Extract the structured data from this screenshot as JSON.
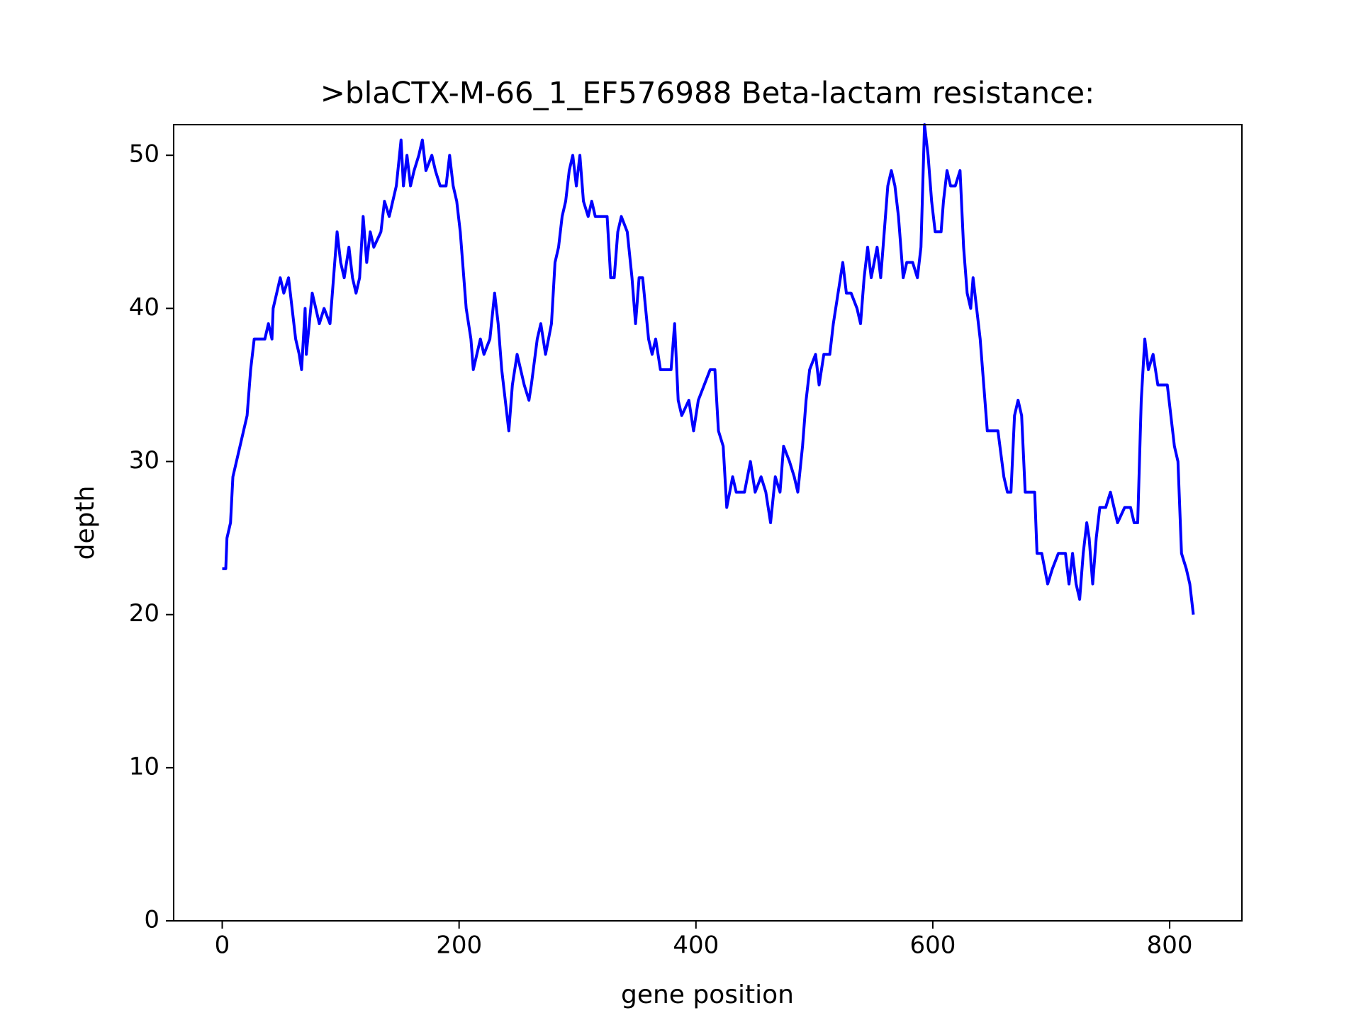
{
  "chart_data": {
    "type": "line",
    "title": ">blaCTX-M-66_1_EF576988 Beta-lactam resistance:",
    "xlabel": "gene position",
    "ylabel": "depth",
    "color": "#0000ff",
    "xlim": [
      -41,
      861
    ],
    "ylim": [
      0,
      52
    ],
    "xticks": [
      0,
      200,
      400,
      600,
      800
    ],
    "yticks": [
      0,
      10,
      20,
      30,
      40,
      50
    ],
    "x": [
      0,
      3,
      4,
      7,
      9,
      12,
      15,
      18,
      21,
      24,
      27,
      36,
      39,
      42,
      43,
      46,
      49,
      52,
      56,
      59,
      62,
      65,
      67,
      70,
      71,
      76,
      79,
      82,
      86,
      91,
      94,
      97,
      100,
      103,
      107,
      110,
      113,
      116,
      119,
      122,
      125,
      128,
      134,
      137,
      141,
      144,
      147,
      151,
      153,
      156,
      159,
      162,
      166,
      169,
      172,
      177,
      180,
      184,
      189,
      192,
      195,
      198,
      201,
      203,
      206,
      210,
      212,
      215,
      218,
      221,
      226,
      230,
      233,
      236,
      239,
      242,
      245,
      249,
      252,
      255,
      259,
      261,
      266,
      269,
      273,
      278,
      281,
      284,
      287,
      290,
      293,
      296,
      299,
      302,
      305,
      309,
      312,
      315,
      319,
      325,
      328,
      331,
      334,
      337,
      342,
      346,
      349,
      352,
      355,
      360,
      363,
      366,
      370,
      373,
      379,
      382,
      385,
      388,
      394,
      398,
      402,
      407,
      412,
      416,
      419,
      423,
      426,
      431,
      434,
      441,
      446,
      450,
      455,
      459,
      463,
      467,
      471,
      474,
      479,
      483,
      486,
      490,
      493,
      496,
      501,
      504,
      508,
      513,
      516,
      520,
      524,
      527,
      531,
      536,
      539,
      542,
      545,
      548,
      553,
      556,
      559,
      562,
      565,
      568,
      571,
      575,
      578,
      583,
      587,
      590,
      593,
      596,
      599,
      602,
      607,
      609,
      612,
      615,
      619,
      623,
      626,
      629,
      632,
      634,
      637,
      640,
      643,
      646,
      651,
      655,
      660,
      663,
      666,
      669,
      672,
      675,
      678,
      682,
      686,
      688,
      692,
      697,
      701,
      706,
      712,
      715,
      718,
      721,
      724,
      727,
      730,
      732,
      735,
      738,
      741,
      746,
      750,
      753,
      756,
      762,
      767,
      770,
      773,
      776,
      779,
      782,
      786,
      790,
      798,
      801,
      804,
      807,
      810,
      814,
      817,
      820
    ],
    "values": [
      23,
      23,
      25,
      26,
      29,
      30,
      31,
      32,
      33,
      36,
      38,
      38,
      39,
      38,
      40,
      41,
      42,
      41,
      42,
      40,
      38,
      37,
      36,
      40,
      37,
      41,
      40,
      39,
      40,
      39,
      42,
      45,
      43,
      42,
      44,
      42,
      41,
      42,
      46,
      43,
      45,
      44,
      45,
      47,
      46,
      47,
      48,
      51,
      48,
      50,
      48,
      49,
      50,
      51,
      49,
      50,
      49,
      48,
      48,
      50,
      48,
      47,
      45,
      43,
      40,
      38,
      36,
      37,
      38,
      37,
      38,
      41,
      39,
      36,
      34,
      32,
      35,
      37,
      36,
      35,
      34,
      35,
      38,
      39,
      37,
      39,
      43,
      44,
      46,
      47,
      49,
      50,
      48,
      50,
      47,
      46,
      47,
      46,
      46,
      46,
      42,
      42,
      45,
      46,
      45,
      42,
      39,
      42,
      42,
      38,
      37,
      38,
      36,
      36,
      36,
      39,
      34,
      33,
      34,
      32,
      34,
      35,
      36,
      36,
      32,
      31,
      27,
      29,
      28,
      28,
      30,
      28,
      29,
      28,
      26,
      29,
      28,
      31,
      30,
      29,
      28,
      31,
      34,
      36,
      37,
      35,
      37,
      37,
      39,
      41,
      43,
      41,
      41,
      40,
      39,
      42,
      44,
      42,
      44,
      42,
      45,
      48,
      49,
      48,
      46,
      42,
      43,
      43,
      42,
      44,
      52,
      50,
      47,
      45,
      45,
      47,
      49,
      48,
      48,
      49,
      44,
      41,
      40,
      42,
      40,
      38,
      35,
      32,
      32,
      32,
      29,
      28,
      28,
      33,
      34,
      33,
      28,
      28,
      28,
      24,
      24,
      22,
      23,
      24,
      24,
      22,
      24,
      22,
      21,
      24,
      26,
      25,
      22,
      25,
      27,
      27,
      28,
      27,
      26,
      27,
      27,
      26,
      26,
      34,
      38,
      36,
      37,
      35,
      35,
      33,
      31,
      30,
      24,
      23,
      22,
      20
    ]
  }
}
